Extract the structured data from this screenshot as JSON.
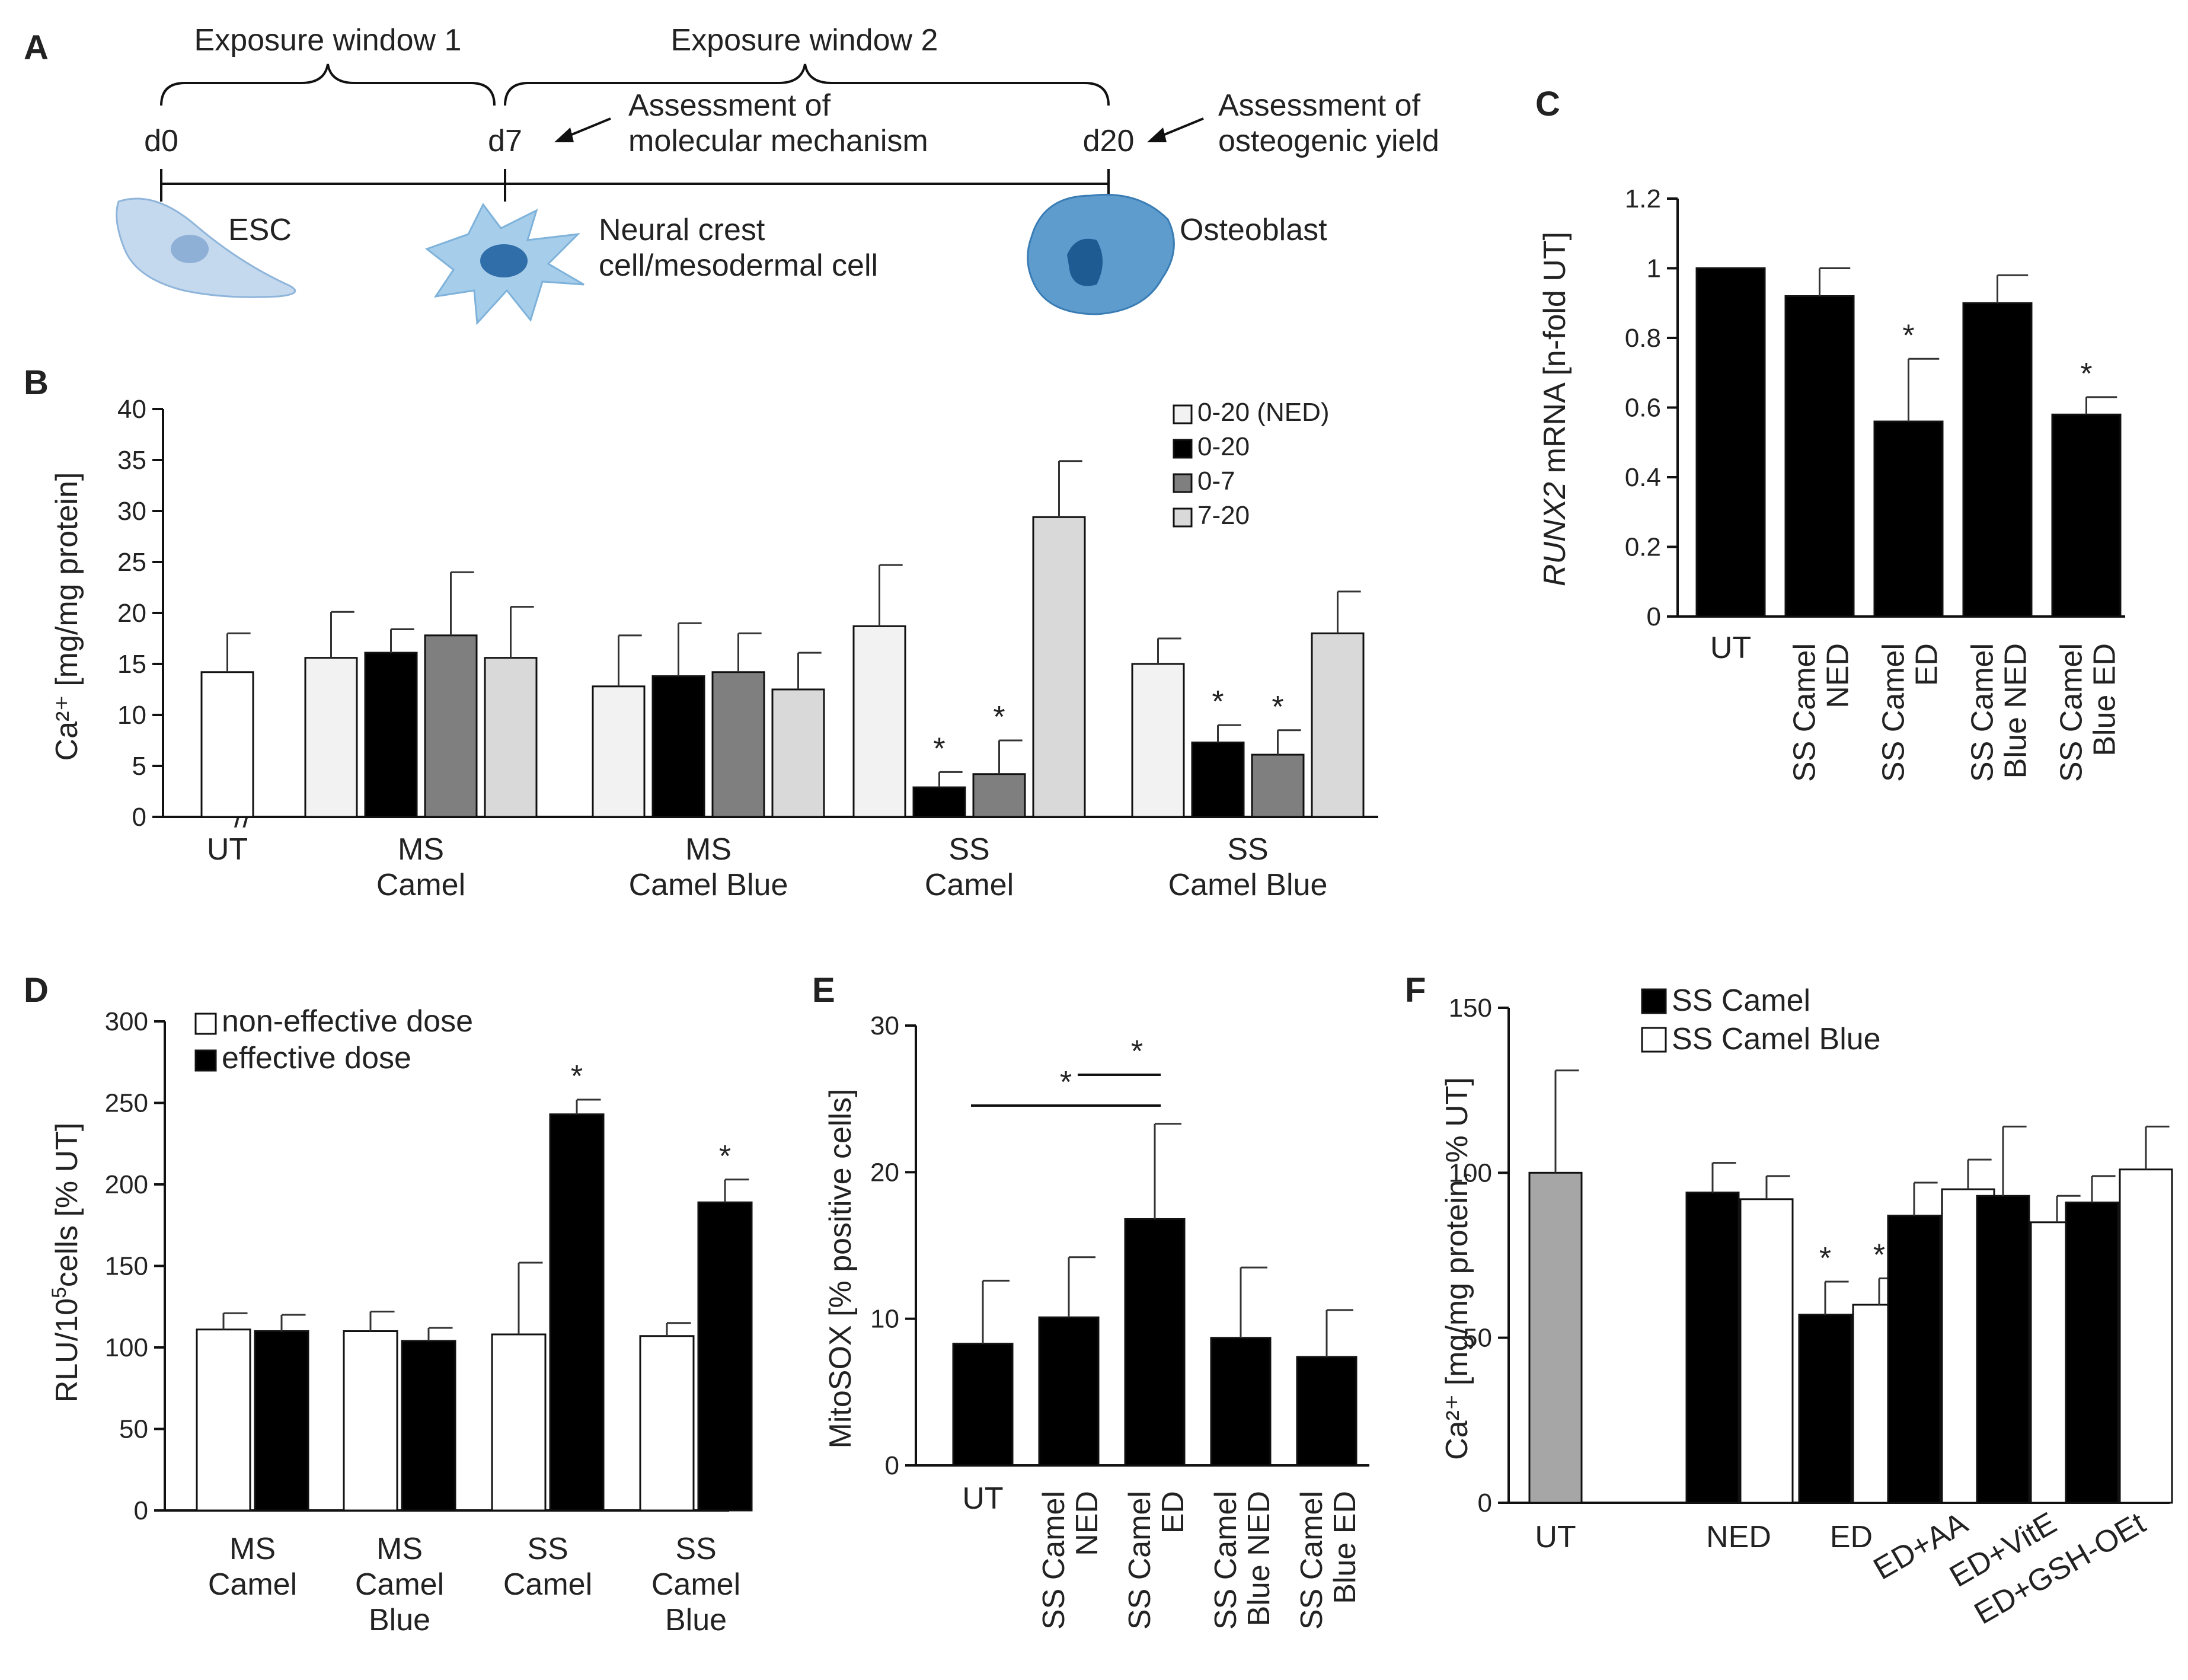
{
  "colors": {
    "white": "#ffffff",
    "black": "#000000",
    "dark_gray": "#7f7f7f",
    "light_gray": "#d9d9d9",
    "very_light": "#f2f2f2",
    "ut_gray": "#a6a6a6",
    "cell_fill": "#aacbe8",
    "cell_stroke": "#6aa0cf",
    "nucleus": "#3f7fb8"
  },
  "icons": [
    "esc-cell-icon",
    "neural-crest-cell-icon",
    "osteoblast-cell-icon"
  ],
  "panel_a": {
    "letter": "A",
    "window1": "Exposure window 1",
    "window2": "Exposure window 2",
    "d0": "d0",
    "d7": "d7",
    "d20": "d20",
    "assess1_line1": "Assessment of",
    "assess1_line2": "molecular mechanism",
    "assess2_line1": "Assessment of",
    "assess2_line2": "osteogenic yield",
    "cell1": "ESC",
    "cell2_line1": "Neural crest",
    "cell2_line2": "cell/mesodermal cell",
    "cell3": "Osteoblast"
  },
  "panels": {
    "b": {
      "letter": "B",
      "ylabel": "Ca²⁺ [mg/mg protein]",
      "break_mark": "//"
    },
    "c": {
      "letter": "C",
      "ylabel_italic": "RUNX2",
      "ylabel_rest": " mRNA [n-fold UT]"
    },
    "d": {
      "letter": "D",
      "ylabel_a": "RLU/10",
      "ylabel_sup": "5",
      "ylabel_b": "cells [% UT]"
    },
    "e": {
      "letter": "E",
      "ylabel": "MitoSOX [% positive cells]"
    },
    "f": {
      "letter": "F",
      "ylabel": "Ca²⁺ [mg/mg protein, % UT]"
    }
  },
  "chart_data": [
    {
      "panel": "B",
      "type": "bar",
      "ylim": [
        0,
        40
      ],
      "yticks": [
        0,
        5,
        10,
        15,
        20,
        25,
        30,
        35,
        40
      ],
      "ylabel": "Ca²⁺ [mg/mg protein]",
      "legend": [
        "0-20 (NED)",
        "0-20",
        "0-7",
        "7-20"
      ],
      "ut": {
        "label": "UT",
        "value": 14.2,
        "error": 3.8
      },
      "groups": [
        {
          "line1": "MS",
          "line2": "Camel",
          "values": [
            15.6,
            16.1,
            17.8,
            15.6
          ],
          "errors": [
            4.5,
            2.3,
            6.2,
            5.0
          ],
          "sig": [
            false,
            false,
            false,
            false
          ]
        },
        {
          "line1": "MS",
          "line2": "Camel Blue",
          "values": [
            12.8,
            13.8,
            14.2,
            12.5
          ],
          "errors": [
            5.0,
            5.2,
            3.8,
            3.6
          ],
          "sig": [
            false,
            false,
            false,
            false
          ]
        },
        {
          "line1": "SS",
          "line2": "Camel",
          "values": [
            18.7,
            2.9,
            4.2,
            29.4
          ],
          "errors": [
            6.0,
            1.5,
            3.3,
            5.5
          ],
          "sig": [
            false,
            true,
            true,
            false
          ]
        },
        {
          "line1": "SS",
          "line2": "Camel Blue",
          "values": [
            15.0,
            7.3,
            6.1,
            18.0
          ],
          "errors": [
            2.5,
            1.7,
            2.4,
            4.1
          ],
          "sig": [
            false,
            true,
            true,
            false
          ]
        }
      ],
      "sig_mark": "*"
    },
    {
      "panel": "C",
      "type": "bar",
      "ylim": [
        0,
        1.2
      ],
      "yticks": [
        "0",
        "0.2",
        "0.4",
        "0.6",
        "0.8",
        "1",
        "1.2"
      ],
      "categories": [
        {
          "line1": "UT",
          "line2": ""
        },
        {
          "line1": "SS Camel",
          "line2": "NED"
        },
        {
          "line1": "SS Camel",
          "line2": "ED"
        },
        {
          "line1": "SS Camel",
          "line2": "Blue NED"
        },
        {
          "line1": "SS  Camel",
          "line2": "Blue ED"
        }
      ],
      "values": [
        1.0,
        0.92,
        0.56,
        0.9,
        0.58
      ],
      "errors": [
        0,
        0.08,
        0.18,
        0.08,
        0.05
      ],
      "sig": [
        false,
        false,
        true,
        false,
        true
      ],
      "sig_mark": "*"
    },
    {
      "panel": "D",
      "type": "bar",
      "ylim": [
        0,
        300
      ],
      "yticks": [
        0,
        50,
        100,
        150,
        200,
        250,
        300
      ],
      "legend": [
        "non-effective dose",
        "effective dose"
      ],
      "groups": [
        {
          "line1": "MS",
          "line2": "Camel",
          "line3": "",
          "values": [
            111,
            110
          ],
          "errors": [
            10,
            10
          ],
          "sig": [
            false,
            false
          ]
        },
        {
          "line1": "MS",
          "line2": "Camel",
          "line3": "Blue",
          "values": [
            110,
            104
          ],
          "errors": [
            12,
            8
          ],
          "sig": [
            false,
            false
          ]
        },
        {
          "line1": "SS",
          "line2": "Camel",
          "line3": "",
          "values": [
            108,
            243
          ],
          "errors": [
            44,
            9
          ],
          "sig": [
            false,
            true
          ]
        },
        {
          "line1": "SS",
          "line2": "Camel",
          "line3": "Blue",
          "values": [
            107,
            189
          ],
          "errors": [
            8,
            14
          ],
          "sig": [
            false,
            true
          ]
        }
      ],
      "sig_mark": "*"
    },
    {
      "panel": "E",
      "type": "bar",
      "ylim": [
        0,
        30
      ],
      "yticks": [
        0,
        10,
        20,
        30
      ],
      "categories": [
        {
          "line1": "UT",
          "line2": ""
        },
        {
          "line1": "SS Camel",
          "line2": "NED"
        },
        {
          "line1": "SS Camel",
          "line2": "ED"
        },
        {
          "line1": "SS Camel",
          "line2": "Blue NED"
        },
        {
          "line1": "SS  Camel",
          "line2": "Blue ED"
        }
      ],
      "values": [
        8.3,
        10.1,
        16.8,
        8.7,
        7.4
      ],
      "errors": [
        4.3,
        4.1,
        6.5,
        4.8,
        3.2
      ],
      "brackets": [
        {
          "from": 0,
          "to": 2,
          "label": "*"
        },
        {
          "from": 1,
          "to": 2,
          "label": "*"
        }
      ]
    },
    {
      "panel": "F",
      "type": "bar",
      "ylim": [
        0,
        150
      ],
      "yticks": [
        0,
        50,
        100,
        150
      ],
      "legend": [
        "SS Camel",
        "SS Camel Blue"
      ],
      "ut": {
        "label": "UT",
        "value": 100,
        "error": 31
      },
      "groups": [
        {
          "label": "NED",
          "values": [
            94,
            92
          ],
          "errors": [
            9,
            7
          ],
          "sig": [
            false,
            false
          ]
        },
        {
          "label": "ED",
          "values": [
            57,
            60
          ],
          "errors": [
            10,
            8
          ],
          "sig": [
            true,
            true
          ]
        },
        {
          "label": "ED+AA",
          "values": [
            87,
            95
          ],
          "errors": [
            10,
            9
          ],
          "sig": [
            false,
            false
          ]
        },
        {
          "label": "ED+VitE",
          "values": [
            93,
            85
          ],
          "errors": [
            21,
            8
          ],
          "sig": [
            false,
            false
          ]
        },
        {
          "label": "ED+GSH-OEt",
          "values": [
            91,
            101
          ],
          "errors": [
            8,
            13
          ],
          "sig": [
            false,
            false
          ]
        }
      ],
      "sig_mark": "*"
    }
  ]
}
